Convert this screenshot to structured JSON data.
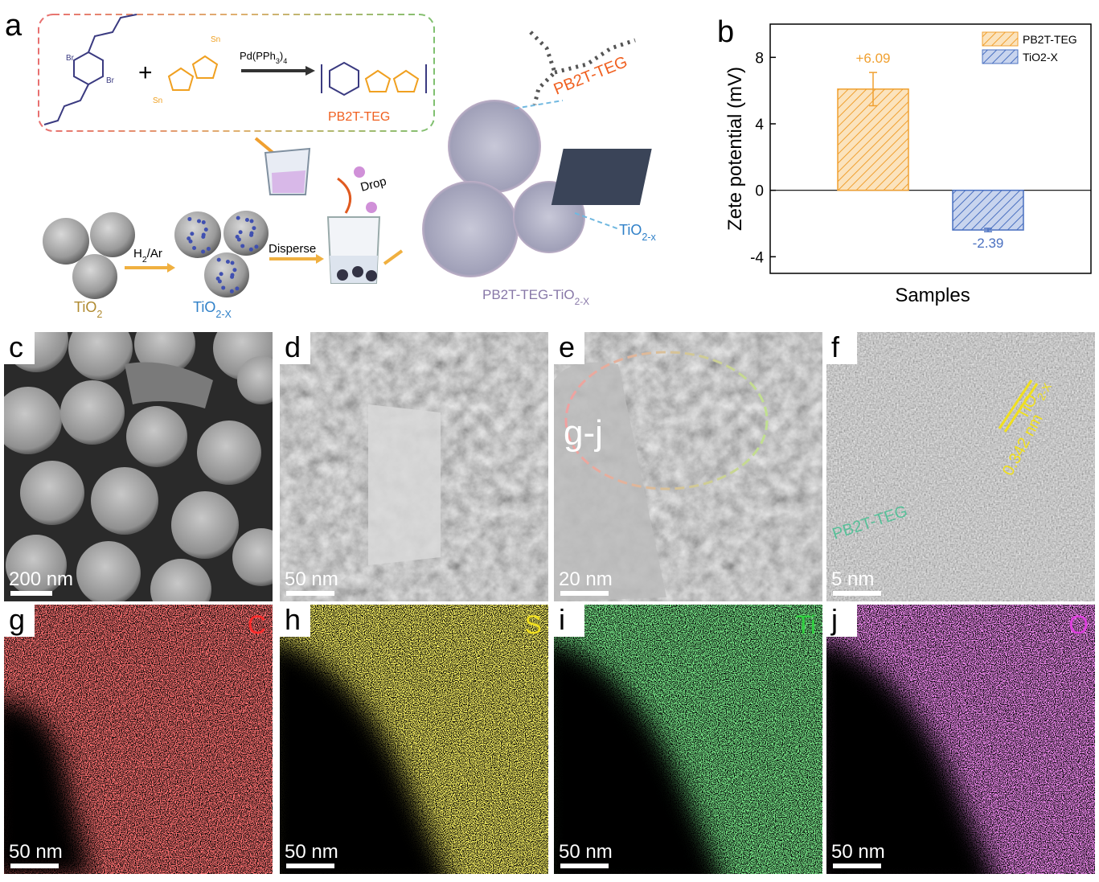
{
  "panel_a": {
    "label": "a",
    "plus": "+",
    "br": [
      "Br",
      "Br"
    ],
    "sn": [
      "Sn",
      "Sn"
    ],
    "catalyst": [
      "Pd(PPh",
      "3",
      ")",
      "4"
    ],
    "polymer": "PB2T-TEG",
    "polymer_label": "PB2T-TEG",
    "drop": "Drop",
    "reduce": [
      "H",
      "2",
      "/Ar"
    ],
    "disperse": "Disperse",
    "tio2": [
      "TiO",
      "2"
    ],
    "tio2x": [
      "TiO",
      "2-X"
    ],
    "composite": [
      "PB2T-TEG-TiO",
      "2-X"
    ],
    "crystal": [
      "TiO",
      "2-x"
    ]
  },
  "chart_data": {
    "type": "bar",
    "panel_label": "b",
    "categories": [
      null
    ],
    "x_label": "Samples",
    "y_label": "Zete potential (mV)",
    "series": [
      {
        "name": "PB2T-TEG",
        "color": "#f0a030",
        "values": [
          6.09
        ],
        "value_labels": [
          "+6.09"
        ],
        "errors": [
          1.0
        ]
      },
      {
        "name": "TiO2-X",
        "color": "#4a70c0",
        "values": [
          -2.39
        ],
        "value_labels": [
          "-2.39"
        ],
        "errors": [
          0.1
        ]
      }
    ],
    "ylim": [
      -5,
      10
    ],
    "yticks": [
      -4,
      0,
      4,
      8
    ],
    "legend": "upper right"
  },
  "panels": [
    {
      "label": "c",
      "scale_bar": "200 nm"
    },
    {
      "label": "d",
      "scale_bar": "50 nm"
    },
    {
      "label": "e",
      "scale_bar": "20 nm",
      "region": "g-j"
    },
    {
      "label": "f",
      "scale_bar": "5 nm",
      "lattice": [
        "TiO",
        "2-X"
      ],
      "spacing": "0.342 nm",
      "polymer": "PB2T-TEG"
    },
    {
      "label": "g",
      "scale_bar": "50 nm",
      "element": "C"
    },
    {
      "label": "h",
      "scale_bar": "50 nm",
      "element": "S"
    },
    {
      "label": "i",
      "scale_bar": "50 nm",
      "element": "Ti"
    },
    {
      "label": "j",
      "scale_bar": "50 nm",
      "element": "O"
    }
  ]
}
